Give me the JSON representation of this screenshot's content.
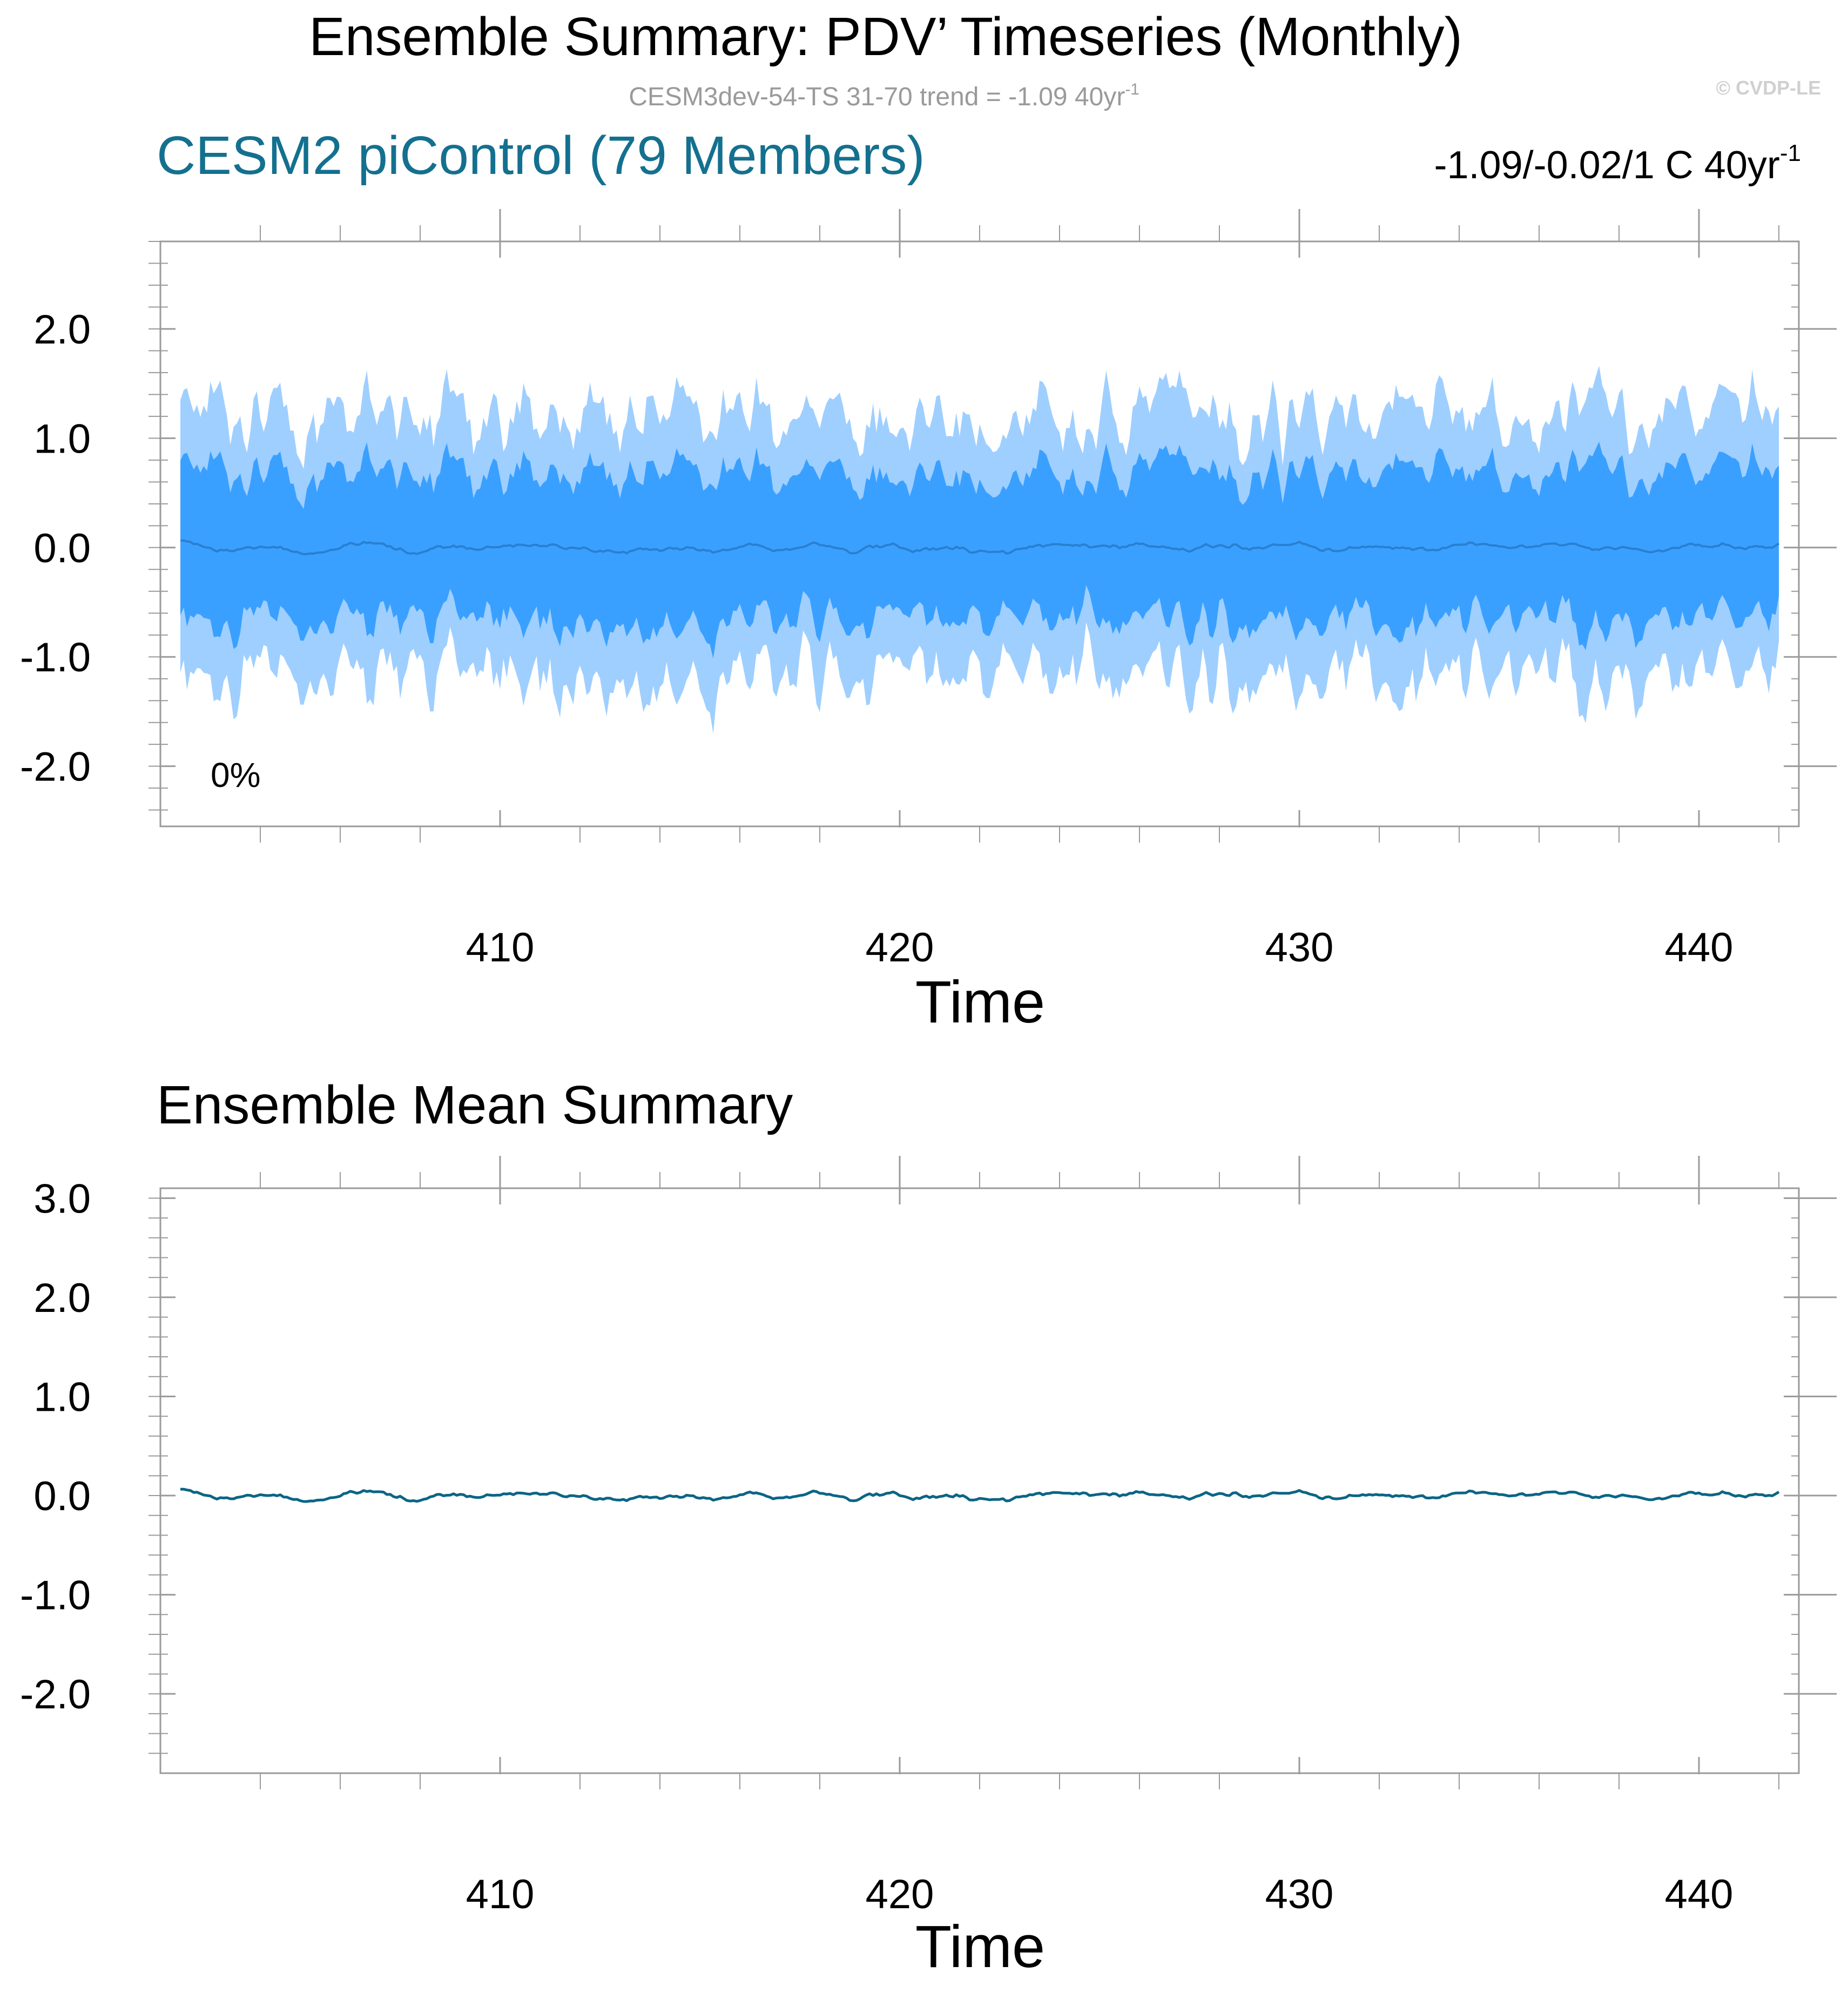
{
  "figure": {
    "title": "Ensemble Summary: PDV’ Timeseries (Monthly)",
    "subtitle": "CESM3dev-54-TS 31-70 trend = -1.09 40yr",
    "subtitle_sup": "-1",
    "watermark": "© CVDP-LE"
  },
  "colors": {
    "outer_band": "#9fcfff",
    "inner_band": "#3aa0ff",
    "median_line": "#2a7fd0",
    "ensemble_mean_line": "#0b6585",
    "member_title": "#14708f",
    "axis": "#9a9a9a",
    "subtitle": "#9a9a9a"
  },
  "chart_data": [
    {
      "type": "area",
      "title": "CESM2 piControl (79 Members)",
      "right_label": "-1.09/-0.02/1 C 40yr",
      "right_label_sup": "-1",
      "annotation": "0%",
      "xlabel": "Time",
      "ylabel": "",
      "xlim": [
        401.5,
        442.5
      ],
      "ylim": [
        -2.55,
        2.8
      ],
      "xticks": [
        410,
        420,
        430,
        440
      ],
      "yticks": [
        -2.0,
        -1.0,
        0.0,
        1.0,
        2.0
      ],
      "ytick_labels": [
        "-2.0",
        "-1.0",
        "0.0",
        "1.0",
        "2.0"
      ],
      "grid": false,
      "series": [
        {
          "role": "outer_range",
          "x_start": 402.0,
          "x_end": 442.0,
          "mean_abs": 1.2,
          "peak_max": 1.88,
          "peak_min": -1.78
        },
        {
          "role": "inner_range",
          "x_start": 402.0,
          "x_end": 442.0,
          "mean_abs": 0.68,
          "peak_max": 1.02,
          "peak_min": -1.05
        },
        {
          "role": "median",
          "x_start": 402.0,
          "x_end": 442.0,
          "approx_value": 0.0,
          "range": [
            -0.06,
            0.1
          ]
        }
      ]
    },
    {
      "type": "line",
      "title": "Ensemble Mean Summary",
      "xlabel": "Time",
      "ylabel": "",
      "xlim": [
        401.5,
        442.5
      ],
      "ylim": [
        -2.8,
        3.1
      ],
      "xticks": [
        410,
        420,
        430,
        440
      ],
      "yticks": [
        -2.0,
        -1.0,
        0.0,
        1.0,
        2.0,
        3.0
      ],
      "ytick_labels": [
        "-2.0",
        "-1.0",
        "0.0",
        "1.0",
        "2.0",
        "3.0"
      ],
      "grid": false,
      "series": [
        {
          "role": "ensemble_mean",
          "x_start": 402.0,
          "x_end": 442.0,
          "approx_value": 0.0,
          "range": [
            -0.06,
            0.1
          ]
        }
      ]
    }
  ]
}
